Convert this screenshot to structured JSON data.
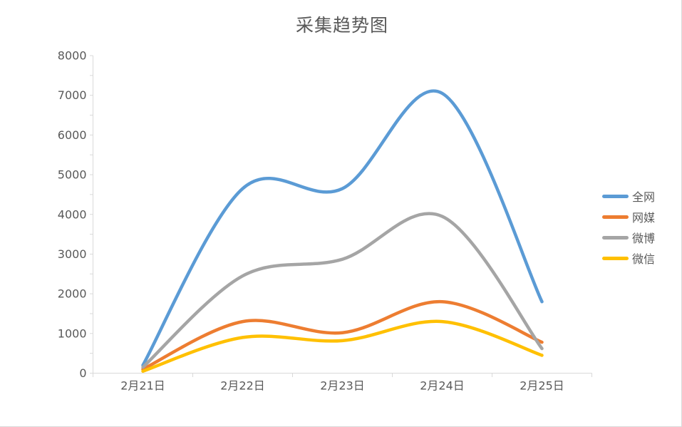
{
  "chart_data": {
    "type": "line",
    "smooth": true,
    "title": "采集趋势图",
    "categories": [
      "2月21日",
      "2月22日",
      "2月23日",
      "2月24日",
      "2月25日"
    ],
    "series": [
      {
        "name": "全网",
        "color": "#5B9BD5",
        "values": [
          200,
          4650,
          4650,
          7050,
          1800
        ]
      },
      {
        "name": "网媒",
        "color": "#ED7D31",
        "values": [
          100,
          1300,
          1020,
          1800,
          780
        ]
      },
      {
        "name": "微博",
        "color": "#A5A5A5",
        "values": [
          150,
          2450,
          2870,
          3950,
          620
        ]
      },
      {
        "name": "微信",
        "color": "#FFC000",
        "values": [
          50,
          900,
          820,
          1300,
          450
        ]
      }
    ],
    "ylim": [
      0,
      8000
    ],
    "ytick_interval": 1000,
    "yminor_interval": 500,
    "grid": false,
    "legend_position": "right",
    "axis_color": "#D9D9D9",
    "label_color": "#595959"
  }
}
